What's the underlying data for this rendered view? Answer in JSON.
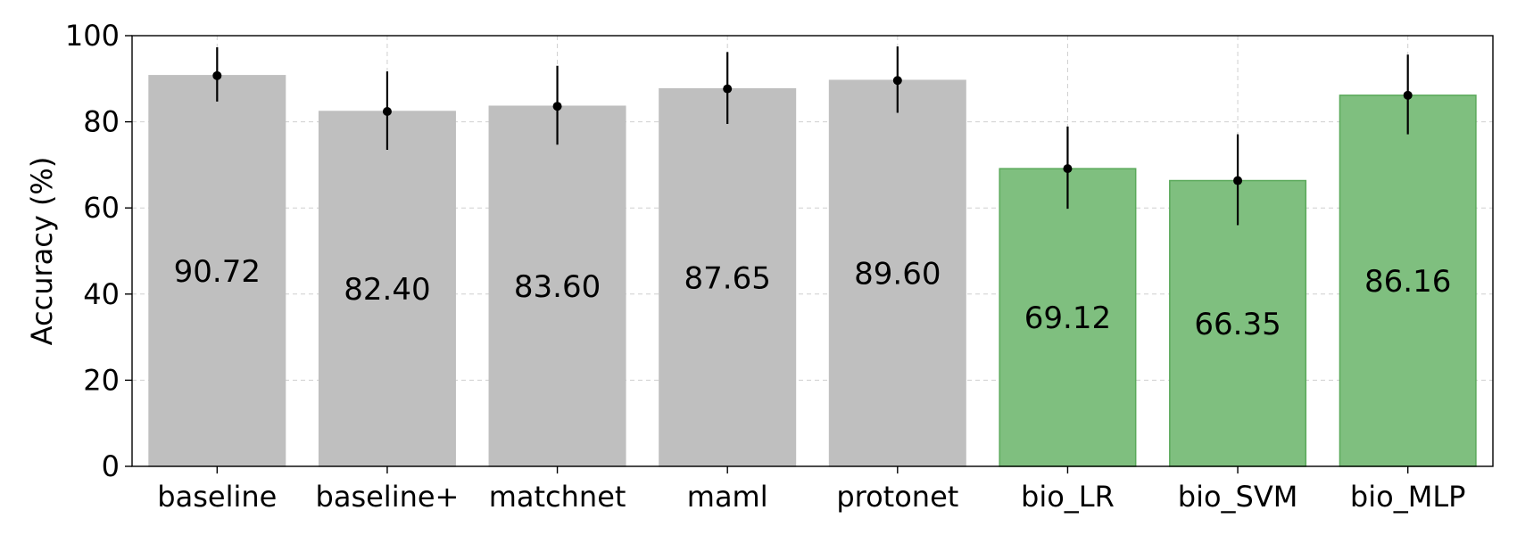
{
  "chart_data": {
    "type": "bar",
    "title": "",
    "xlabel": "",
    "ylabel": "Accuracy (%)",
    "ylim": [
      0,
      100
    ],
    "yticks": [
      0,
      20,
      40,
      60,
      80,
      100
    ],
    "grid": true,
    "categories": [
      "baseline",
      "baseline+",
      "matchnet",
      "maml",
      "protonet",
      "bio_LR",
      "bio_SVM",
      "bio_MLP"
    ],
    "values": [
      90.72,
      82.4,
      83.6,
      87.65,
      89.6,
      69.12,
      66.35,
      86.16
    ],
    "value_labels": [
      "90.72",
      "82.40",
      "83.60",
      "87.65",
      "89.60",
      "69.12",
      "66.35",
      "86.16"
    ],
    "error_bars": [
      [
        84.7,
        97.3
      ],
      [
        73.5,
        91.7
      ],
      [
        74.7,
        93.0
      ],
      [
        79.5,
        96.2
      ],
      [
        82.1,
        97.5
      ],
      [
        59.8,
        78.9
      ],
      [
        56.0,
        77.1
      ],
      [
        77.1,
        95.6
      ]
    ],
    "bar_colors": [
      "#bfbfbf",
      "#bfbfbf",
      "#bfbfbf",
      "#bfbfbf",
      "#bfbfbf",
      "#7fbf7f",
      "#7fbf7f",
      "#7fbf7f"
    ],
    "bar_edge_colors": [
      "#bfbfbf",
      "#bfbfbf",
      "#bfbfbf",
      "#bfbfbf",
      "#bfbfbf",
      "#5aa95a",
      "#5aa95a",
      "#5aa95a"
    ]
  }
}
